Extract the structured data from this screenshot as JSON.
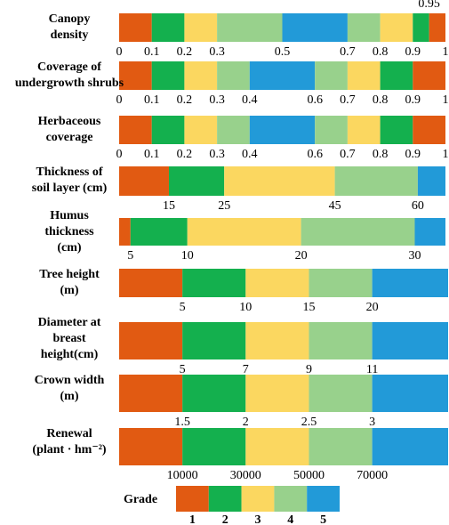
{
  "chart_data": {
    "type": "bar",
    "colors": {
      "1": "#e15a12",
      "2": "#14b04e",
      "3": "#fbd760",
      "4": "#98d18c",
      "5": "#229ad8"
    },
    "rows": [
      {
        "label": [
          "Canopy",
          "density"
        ],
        "segments": [
          {
            "start": 0,
            "end": 0.1,
            "grade": 1
          },
          {
            "start": 0.1,
            "end": 0.2,
            "grade": 2
          },
          {
            "start": 0.2,
            "end": 0.3,
            "grade": 3
          },
          {
            "start": 0.3,
            "end": 0.5,
            "grade": 4
          },
          {
            "start": 0.5,
            "end": 0.7,
            "grade": 5
          },
          {
            "start": 0.7,
            "end": 0.8,
            "grade": 4
          },
          {
            "start": 0.8,
            "end": 0.9,
            "grade": 3
          },
          {
            "start": 0.9,
            "end": 0.95,
            "grade": 2
          },
          {
            "start": 0.95,
            "end": 1,
            "grade": 1
          }
        ],
        "ticks": [
          {
            "value": 0,
            "text": "0"
          },
          {
            "value": 0.1,
            "text": "0.1"
          },
          {
            "value": 0.2,
            "text": "0.2"
          },
          {
            "value": 0.3,
            "text": "0.3"
          },
          {
            "value": 0.5,
            "text": "0.5"
          },
          {
            "value": 0.7,
            "text": "0.7"
          },
          {
            "value": 0.8,
            "text": "0.8"
          },
          {
            "value": 0.9,
            "text": "0.9"
          },
          {
            "value": 1,
            "text": "1"
          }
        ],
        "top_ticks": [
          {
            "value": 0.95,
            "text": "0.95"
          }
        ]
      },
      {
        "label": [
          "Coverage of",
          "undergrowth shrubs"
        ],
        "segments": [
          {
            "start": 0,
            "end": 0.1,
            "grade": 1
          },
          {
            "start": 0.1,
            "end": 0.2,
            "grade": 2
          },
          {
            "start": 0.2,
            "end": 0.3,
            "grade": 3
          },
          {
            "start": 0.3,
            "end": 0.4,
            "grade": 4
          },
          {
            "start": 0.4,
            "end": 0.6,
            "grade": 5
          },
          {
            "start": 0.6,
            "end": 0.7,
            "grade": 4
          },
          {
            "start": 0.7,
            "end": 0.8,
            "grade": 3
          },
          {
            "start": 0.8,
            "end": 0.9,
            "grade": 2
          },
          {
            "start": 0.9,
            "end": 1,
            "grade": 1
          }
        ],
        "ticks": [
          {
            "value": 0,
            "text": "0"
          },
          {
            "value": 0.1,
            "text": "0.1"
          },
          {
            "value": 0.2,
            "text": "0.2"
          },
          {
            "value": 0.3,
            "text": "0.3"
          },
          {
            "value": 0.4,
            "text": "0.4"
          },
          {
            "value": 0.6,
            "text": "0.6"
          },
          {
            "value": 0.7,
            "text": "0.7"
          },
          {
            "value": 0.8,
            "text": "0.8"
          },
          {
            "value": 0.9,
            "text": "0.9"
          },
          {
            "value": 1,
            "text": "1"
          }
        ]
      },
      {
        "label": [
          "Herbaceous",
          "coverage"
        ],
        "segments": [
          {
            "start": 0,
            "end": 0.1,
            "grade": 1
          },
          {
            "start": 0.1,
            "end": 0.2,
            "grade": 2
          },
          {
            "start": 0.2,
            "end": 0.3,
            "grade": 3
          },
          {
            "start": 0.3,
            "end": 0.4,
            "grade": 4
          },
          {
            "start": 0.4,
            "end": 0.6,
            "grade": 5
          },
          {
            "start": 0.6,
            "end": 0.7,
            "grade": 4
          },
          {
            "start": 0.7,
            "end": 0.8,
            "grade": 3
          },
          {
            "start": 0.8,
            "end": 0.9,
            "grade": 2
          },
          {
            "start": 0.9,
            "end": 1,
            "grade": 1
          }
        ],
        "ticks": [
          {
            "value": 0,
            "text": "0"
          },
          {
            "value": 0.1,
            "text": "0.1"
          },
          {
            "value": 0.2,
            "text": "0.2"
          },
          {
            "value": 0.3,
            "text": "0.3"
          },
          {
            "value": 0.4,
            "text": "0.4"
          },
          {
            "value": 0.6,
            "text": "0.6"
          },
          {
            "value": 0.7,
            "text": "0.7"
          },
          {
            "value": 0.8,
            "text": "0.8"
          },
          {
            "value": 0.9,
            "text": "0.9"
          },
          {
            "value": 1,
            "text": "1"
          }
        ]
      },
      {
        "label": [
          "Thickness of",
          "soil layer (cm)"
        ],
        "segments": [
          {
            "start": 6,
            "end": 15,
            "grade": 1
          },
          {
            "start": 15,
            "end": 25,
            "grade": 2
          },
          {
            "start": 25,
            "end": 45,
            "grade": 3
          },
          {
            "start": 45,
            "end": 60,
            "grade": 4
          },
          {
            "start": 60,
            "end": 65,
            "grade": 5
          }
        ],
        "ticks": [
          {
            "value": 15,
            "text": "15"
          },
          {
            "value": 25,
            "text": "25"
          },
          {
            "value": 45,
            "text": "45"
          },
          {
            "value": 60,
            "text": "60"
          }
        ]
      },
      {
        "label": [
          "Humus",
          "thickness",
          "(cm)"
        ],
        "segments": [
          {
            "start": 4,
            "end": 5,
            "grade": 1
          },
          {
            "start": 5,
            "end": 10,
            "grade": 2
          },
          {
            "start": 10,
            "end": 20,
            "grade": 3
          },
          {
            "start": 20,
            "end": 30,
            "grade": 4
          },
          {
            "start": 30,
            "end": 32.7,
            "grade": 5
          }
        ],
        "ticks": [
          {
            "value": 5,
            "text": "5"
          },
          {
            "value": 10,
            "text": "10"
          },
          {
            "value": 20,
            "text": "20"
          },
          {
            "value": 30,
            "text": "30"
          }
        ]
      },
      {
        "label": [
          "Tree height",
          "(m)"
        ],
        "segments": [
          {
            "start": 0,
            "end": 5,
            "grade": 1
          },
          {
            "start": 5,
            "end": 10,
            "grade": 2
          },
          {
            "start": 10,
            "end": 15,
            "grade": 3
          },
          {
            "start": 15,
            "end": 20,
            "grade": 4
          },
          {
            "start": 20,
            "end": 26,
            "grade": 5
          }
        ],
        "ticks": [
          {
            "value": 5,
            "text": "5"
          },
          {
            "value": 10,
            "text": "10"
          },
          {
            "value": 15,
            "text": "15"
          },
          {
            "value": 20,
            "text": "20"
          }
        ]
      },
      {
        "label": [
          "Diameter at",
          "breast",
          "height(cm)"
        ],
        "segments": [
          {
            "start": 3,
            "end": 5,
            "grade": 1
          },
          {
            "start": 5,
            "end": 7,
            "grade": 2
          },
          {
            "start": 7,
            "end": 9,
            "grade": 3
          },
          {
            "start": 9,
            "end": 11,
            "grade": 4
          },
          {
            "start": 11,
            "end": 13.4,
            "grade": 5
          }
        ],
        "ticks": [
          {
            "value": 5,
            "text": "5"
          },
          {
            "value": 7,
            "text": "7"
          },
          {
            "value": 9,
            "text": "9"
          },
          {
            "value": 11,
            "text": "11"
          }
        ]
      },
      {
        "label": [
          "Crown width",
          "(m)"
        ],
        "segments": [
          {
            "start": 1,
            "end": 1.5,
            "grade": 1
          },
          {
            "start": 1.5,
            "end": 2,
            "grade": 2
          },
          {
            "start": 2,
            "end": 2.5,
            "grade": 3
          },
          {
            "start": 2.5,
            "end": 3,
            "grade": 4
          },
          {
            "start": 3,
            "end": 3.6,
            "grade": 5
          }
        ],
        "ticks": [
          {
            "value": 1.5,
            "text": "1.5"
          },
          {
            "value": 2,
            "text": "2"
          },
          {
            "value": 2.5,
            "text": "2.5"
          },
          {
            "value": 3,
            "text": "3"
          }
        ]
      },
      {
        "label": [
          "Renewal",
          "(plant · hm⁻²)"
        ],
        "segments": [
          {
            "start": -10000,
            "end": 10000,
            "grade": 1
          },
          {
            "start": 10000,
            "end": 30000,
            "grade": 2
          },
          {
            "start": 30000,
            "end": 50000,
            "grade": 3
          },
          {
            "start": 50000,
            "end": 70000,
            "grade": 4
          },
          {
            "start": 70000,
            "end": 94000,
            "grade": 5
          }
        ],
        "ticks": [
          {
            "value": 10000,
            "text": "10000"
          },
          {
            "value": 30000,
            "text": "30000"
          },
          {
            "value": 50000,
            "text": "50000"
          },
          {
            "value": 70000,
            "text": "70000"
          }
        ]
      }
    ],
    "legend": {
      "title": "Grade",
      "items": [
        {
          "grade": 1,
          "label": "1"
        },
        {
          "grade": 2,
          "label": "2"
        },
        {
          "grade": 3,
          "label": "3"
        },
        {
          "grade": 4,
          "label": "4"
        },
        {
          "grade": 5,
          "label": "5"
        }
      ]
    }
  }
}
